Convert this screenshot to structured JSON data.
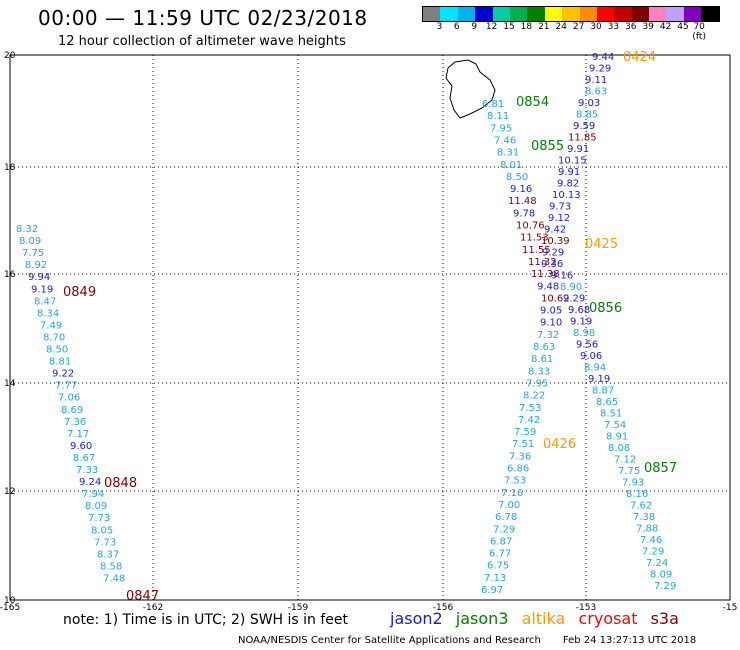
{
  "header": {
    "title": "00:00 — 11:59 UTC 02/23/2018",
    "subtitle": "12 hour collection of altimeter wave heights"
  },
  "colorbar": {
    "labels": [
      "3",
      "6",
      "9",
      "12",
      "15",
      "18",
      "21",
      "24",
      "27",
      "30",
      "33",
      "36",
      "39",
      "42",
      "45",
      "70 (ft)"
    ],
    "colors": [
      "#7f7f7f",
      "#00e5ff",
      "#00b0f0",
      "#0000d0",
      "#00d0a0",
      "#00b050",
      "#008000",
      "#ffff00",
      "#ffc000",
      "#ff8c00",
      "#ff0000",
      "#c00000",
      "#800000",
      "#ff80c0",
      "#c0a0ff",
      "#8000c0",
      "#000000"
    ]
  },
  "map": {
    "y_labels": [
      "20",
      "18",
      "16",
      "14",
      "12",
      "10"
    ],
    "x_labels": [
      "-165",
      "-162",
      "-159",
      "-156",
      "-153",
      "-15"
    ]
  },
  "colors": {
    "jason2": "#1a1ad0",
    "jason3": "#008000",
    "altika": "#ff9900",
    "cryosat": "#ff0000",
    "s3a": "#800000",
    "low": "#29a3e0",
    "mid": "#1a1ad0",
    "high": "#7a0000"
  },
  "track_labels": [
    {
      "text": "0424",
      "color": "altika"
    },
    {
      "text": "0854",
      "color": "jason3"
    },
    {
      "text": "0855",
      "color": "jason3"
    },
    {
      "text": "0425",
      "color": "altika"
    },
    {
      "text": "0856",
      "color": "jason3"
    },
    {
      "text": "0426",
      "color": "altika"
    },
    {
      "text": "0857",
      "color": "jason3"
    },
    {
      "text": "0849",
      "color": "s3a"
    },
    {
      "text": "0848",
      "color": "s3a"
    },
    {
      "text": "0847",
      "color": "s3a"
    }
  ],
  "values": {
    "west": [
      "8.32",
      "8.09",
      "7.75",
      "8.92",
      "9.94",
      "9.19",
      "8.47",
      "8.34",
      "7.49",
      "8.70",
      "8.50",
      "8.81",
      "9.22",
      "7.77",
      "7.06",
      "8.69",
      "7.36",
      "7.17",
      "9.60",
      "8.67",
      "7.33",
      "9.24",
      "7.94",
      "8.09",
      "7.73",
      "8.05",
      "7.73",
      "8.37",
      "8.58",
      "7.48"
    ],
    "center": [
      "6.81",
      "8.11",
      "7.95",
      "7.46",
      "8.31",
      "8.01",
      "8.50",
      "9.16",
      "11.48",
      "9.78",
      "10.76",
      "11.53",
      "11.55",
      "11.32",
      "11.38",
      "9.48",
      "10.62",
      "9.05",
      "9.10",
      "7.32",
      "8.63",
      "8.61",
      "8.33",
      "7.95",
      "8.22",
      "7.53",
      "7.42",
      "7.59",
      "7.51",
      "7.36",
      "6.86",
      "7.53",
      "7.16",
      "7.00",
      "6.78",
      "7.29",
      "6.87",
      "6.77",
      "6.75",
      "7.13",
      "6.97"
    ],
    "east1": [
      "9.44",
      "9.29",
      "9.11",
      "8.63",
      "9.03",
      "8.85",
      "9.59",
      "11.85",
      "9.91",
      "10.15",
      "9.91",
      "9.82",
      "10.13",
      "9.73",
      "9.12",
      "9.42",
      "10.39",
      "9.29",
      "9.36",
      "9.16",
      "8.90",
      "9.29",
      "9.68",
      "9.19",
      "8.98",
      "9.56",
      "9.06",
      "8.94",
      "9.19",
      "8.87",
      "8.65",
      "8.51",
      "7.54",
      "8.91",
      "8.08",
      "7.12",
      "7.75",
      "7.93",
      "8.16",
      "7.62",
      "7.38",
      "7.88",
      "7.46",
      "7.29",
      "7.24",
      "8.09",
      "7.29"
    ]
  },
  "note": "note: 1) Time is in UTC; 2) SWH is in feet",
  "legend": {
    "jason2": "jason2",
    "jason3": "jason3",
    "altika": "altika",
    "cryosat": "cryosat",
    "s3a": "s3a"
  },
  "footer": {
    "org": "NOAA/NESDIS Center for Satellite Applications and Research",
    "timestamp": "Feb 24 13:27:13 UTC 2018"
  }
}
